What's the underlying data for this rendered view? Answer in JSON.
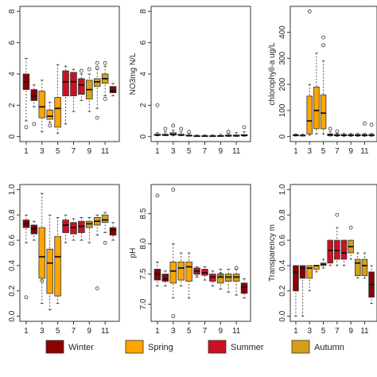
{
  "legend": {
    "items": [
      {
        "label": "Winter",
        "color": "#8B0000"
      },
      {
        "label": "Spring",
        "color": "#FFA500"
      },
      {
        "label": "Summer",
        "color": "#CC1122"
      },
      {
        "label": "Autumn",
        "color": "#D4A017"
      }
    ]
  },
  "chart_data": [
    {
      "type": "box",
      "panel": "top-left",
      "ylabel": "",
      "ylim": [
        0,
        8
      ],
      "yticks": [
        0,
        2,
        4,
        6,
        8
      ],
      "xticks": [
        1,
        3,
        5,
        7,
        9,
        11
      ],
      "grid": false,
      "boxes": [
        {
          "month": 1,
          "min": 1.0,
          "q1": 3.0,
          "median": 3.5,
          "q3": 4.0,
          "max": 5.0,
          "outliers": [
            0.6
          ],
          "season": "Winter"
        },
        {
          "month": 2,
          "min": 1.9,
          "q1": 2.3,
          "median": 2.6,
          "q3": 3.0,
          "max": 3.3,
          "outliers": [
            0.8
          ],
          "season": "Winter"
        },
        {
          "month": 3,
          "min": 0.3,
          "q1": 1.2,
          "median": 1.9,
          "q3": 2.9,
          "max": 3.6,
          "outliers": [],
          "season": "Spring"
        },
        {
          "month": 4,
          "min": 0.9,
          "q1": 1.1,
          "median": 1.3,
          "q3": 1.7,
          "max": 2.2,
          "outliers": [
            0.7
          ],
          "season": "Spring"
        },
        {
          "month": 5,
          "min": 0.2,
          "q1": 0.6,
          "median": 1.8,
          "q3": 2.5,
          "max": 4.6,
          "outliers": [],
          "season": "Spring"
        },
        {
          "month": 6,
          "min": 0.8,
          "q1": 2.6,
          "median": 3.5,
          "q3": 4.2,
          "max": 4.5,
          "outliers": [],
          "season": "Summer"
        },
        {
          "month": 7,
          "min": 1.6,
          "q1": 2.6,
          "median": 3.5,
          "q3": 4.1,
          "max": 4.3,
          "outliers": [],
          "season": "Summer"
        },
        {
          "month": 8,
          "min": 2.3,
          "q1": 2.7,
          "median": 3.3,
          "q3": 3.7,
          "max": 4.0,
          "outliers": [
            4.2
          ],
          "season": "Summer"
        },
        {
          "month": 9,
          "min": 1.6,
          "q1": 2.4,
          "median": 3.0,
          "q3": 3.6,
          "max": 4.0,
          "outliers": [
            4.3
          ],
          "season": "Autumn"
        },
        {
          "month": 10,
          "min": 1.8,
          "q1": 3.2,
          "median": 3.5,
          "q3": 3.7,
          "max": 4.3,
          "outliers": [
            4.7,
            4.4,
            1.2
          ],
          "season": "Autumn"
        },
        {
          "month": 11,
          "min": 2.6,
          "q1": 3.4,
          "median": 3.7,
          "q3": 4.0,
          "max": 4.5,
          "outliers": [
            4.7,
            2.4
          ],
          "season": "Autumn"
        },
        {
          "month": 12,
          "min": 2.6,
          "q1": 2.8,
          "median": 2.9,
          "q3": 3.2,
          "max": 3.4,
          "outliers": [],
          "season": "Winter"
        }
      ]
    },
    {
      "type": "box",
      "panel": "top-center",
      "ylabel": "NO3mg N/L",
      "ylim": [
        0,
        8
      ],
      "yticks": [
        0,
        2,
        4,
        6,
        8
      ],
      "xticks": [
        1,
        3,
        5,
        7,
        9,
        11
      ],
      "grid": false,
      "boxes": [
        {
          "month": 1,
          "min": 0.05,
          "q1": 0.08,
          "median": 0.1,
          "q3": 0.15,
          "max": 0.25,
          "outliers": [
            2.0
          ],
          "season": "Winter"
        },
        {
          "month": 2,
          "min": 0.05,
          "q1": 0.08,
          "median": 0.1,
          "q3": 0.15,
          "max": 0.3,
          "outliers": [
            0.5
          ],
          "season": "Winter"
        },
        {
          "month": 3,
          "min": 0.05,
          "q1": 0.1,
          "median": 0.15,
          "q3": 0.25,
          "max": 0.4,
          "outliers": [
            0.7
          ],
          "season": "Spring"
        },
        {
          "month": 4,
          "min": 0.05,
          "q1": 0.08,
          "median": 0.1,
          "q3": 0.15,
          "max": 0.3,
          "outliers": [
            0.5
          ],
          "season": "Spring"
        },
        {
          "month": 5,
          "min": 0.02,
          "q1": 0.04,
          "median": 0.06,
          "q3": 0.1,
          "max": 0.2,
          "outliers": [
            0.3
          ],
          "season": "Spring"
        },
        {
          "month": 6,
          "min": 0.01,
          "q1": 0.02,
          "median": 0.03,
          "q3": 0.05,
          "max": 0.1,
          "outliers": [],
          "season": "Summer"
        },
        {
          "month": 7,
          "min": 0.01,
          "q1": 0.02,
          "median": 0.03,
          "q3": 0.05,
          "max": 0.1,
          "outliers": [],
          "season": "Summer"
        },
        {
          "month": 8,
          "min": 0.01,
          "q1": 0.02,
          "median": 0.03,
          "q3": 0.05,
          "max": 0.1,
          "outliers": [],
          "season": "Summer"
        },
        {
          "month": 9,
          "min": 0.01,
          "q1": 0.02,
          "median": 0.04,
          "q3": 0.06,
          "max": 0.15,
          "outliers": [],
          "season": "Autumn"
        },
        {
          "month": 10,
          "min": 0.01,
          "q1": 0.03,
          "median": 0.05,
          "q3": 0.1,
          "max": 0.2,
          "outliers": [
            0.3
          ],
          "season": "Autumn"
        },
        {
          "month": 11,
          "min": 0.01,
          "q1": 0.03,
          "median": 0.05,
          "q3": 0.1,
          "max": 0.25,
          "outliers": [],
          "season": "Autumn"
        },
        {
          "month": 12,
          "min": 0.02,
          "q1": 0.05,
          "median": 0.08,
          "q3": 0.12,
          "max": 0.3,
          "outliers": [
            0.6
          ],
          "season": "Winter"
        }
      ]
    },
    {
      "type": "box",
      "panel": "top-right",
      "ylabel": "chlorophyll-a ug/L",
      "ylim": [
        0,
        480
      ],
      "yticks": [
        0,
        100,
        200,
        300,
        400
      ],
      "xticks": [
        1,
        3,
        5,
        7,
        9,
        11
      ],
      "grid": false,
      "boxes": [
        {
          "month": 1,
          "min": 2,
          "q1": 3,
          "median": 5,
          "q3": 7,
          "max": 10,
          "outliers": [],
          "season": "Winter"
        },
        {
          "month": 2,
          "min": 2,
          "q1": 3,
          "median": 4,
          "q3": 6,
          "max": 9,
          "outliers": [],
          "season": "Winter"
        },
        {
          "month": 3,
          "min": 5,
          "q1": 10,
          "median": 60,
          "q3": 155,
          "max": 200,
          "outliers": [
            480
          ],
          "season": "Spring"
        },
        {
          "month": 4,
          "min": 10,
          "q1": 30,
          "median": 100,
          "q3": 190,
          "max": 320,
          "outliers": [],
          "season": "Spring"
        },
        {
          "month": 5,
          "min": 10,
          "q1": 30,
          "median": 90,
          "q3": 160,
          "max": 290,
          "outliers": [
            380,
            350
          ],
          "season": "Spring"
        },
        {
          "month": 6,
          "min": 2,
          "q1": 4,
          "median": 6,
          "q3": 10,
          "max": 18,
          "outliers": [
            30
          ],
          "season": "Summer"
        },
        {
          "month": 7,
          "min": 1,
          "q1": 3,
          "median": 5,
          "q3": 8,
          "max": 12,
          "outliers": [
            20
          ],
          "season": "Summer"
        },
        {
          "month": 8,
          "min": 1,
          "q1": 3,
          "median": 5,
          "q3": 8,
          "max": 12,
          "outliers": [],
          "season": "Summer"
        },
        {
          "month": 9,
          "min": 1,
          "q1": 3,
          "median": 5,
          "q3": 8,
          "max": 12,
          "outliers": [],
          "season": "Autumn"
        },
        {
          "month": 10,
          "min": 1,
          "q1": 3,
          "median": 5,
          "q3": 8,
          "max": 12,
          "outliers": [],
          "season": "Autumn"
        },
        {
          "month": 11,
          "min": 1,
          "q1": 3,
          "median": 5,
          "q3": 8,
          "max": 12,
          "outliers": [
            50
          ],
          "season": "Autumn"
        },
        {
          "month": 12,
          "min": 1,
          "q1": 3,
          "median": 5,
          "q3": 8,
          "max": 12,
          "outliers": [
            45
          ],
          "season": "Winter"
        }
      ]
    },
    {
      "type": "box",
      "panel": "bottom-left",
      "ylabel": "",
      "ylim": [
        0,
        1.0
      ],
      "yticks": [
        0.0,
        0.2,
        0.4,
        0.6,
        0.8,
        1.0
      ],
      "xticks": [
        1,
        3,
        5,
        7,
        9,
        11
      ],
      "grid": false,
      "boxes": [
        {
          "month": 1,
          "min": 0.58,
          "q1": 0.7,
          "median": 0.73,
          "q3": 0.76,
          "max": 0.8,
          "outliers": [
            0.15
          ],
          "season": "Winter"
        },
        {
          "month": 2,
          "min": 0.6,
          "q1": 0.65,
          "median": 0.69,
          "q3": 0.72,
          "max": 0.75,
          "outliers": [],
          "season": "Winter"
        },
        {
          "month": 3,
          "min": 0.1,
          "q1": 0.3,
          "median": 0.47,
          "q3": 0.7,
          "max": 0.97,
          "outliers": [
            0.28
          ],
          "season": "Spring"
        },
        {
          "month": 4,
          "min": 0.05,
          "q1": 0.18,
          "median": 0.42,
          "q3": 0.53,
          "max": 0.8,
          "outliers": [],
          "season": "Spring"
        },
        {
          "month": 5,
          "min": 0.1,
          "q1": 0.16,
          "median": 0.47,
          "q3": 0.63,
          "max": 0.78,
          "outliers": [],
          "season": "Spring"
        },
        {
          "month": 6,
          "min": 0.58,
          "q1": 0.66,
          "median": 0.72,
          "q3": 0.76,
          "max": 0.8,
          "outliers": [],
          "season": "Summer"
        },
        {
          "month": 7,
          "min": 0.6,
          "q1": 0.65,
          "median": 0.7,
          "q3": 0.74,
          "max": 0.77,
          "outliers": [],
          "season": "Summer"
        },
        {
          "month": 8,
          "min": 0.6,
          "q1": 0.66,
          "median": 0.71,
          "q3": 0.75,
          "max": 0.78,
          "outliers": [],
          "season": "Summer"
        },
        {
          "month": 9,
          "min": 0.58,
          "q1": 0.7,
          "median": 0.73,
          "q3": 0.75,
          "max": 0.78,
          "outliers": [],
          "season": "Autumn"
        },
        {
          "month": 10,
          "min": 0.64,
          "q1": 0.72,
          "median": 0.75,
          "q3": 0.78,
          "max": 0.8,
          "outliers": [
            0.22
          ],
          "season": "Autumn"
        },
        {
          "month": 11,
          "min": 0.66,
          "q1": 0.74,
          "median": 0.76,
          "q3": 0.8,
          "max": 0.82,
          "outliers": [
            0.58
          ],
          "season": "Autumn"
        },
        {
          "month": 12,
          "min": 0.6,
          "q1": 0.64,
          "median": 0.68,
          "q3": 0.7,
          "max": 0.74,
          "outliers": [],
          "season": "Winter"
        }
      ]
    },
    {
      "type": "box",
      "panel": "bottom-center",
      "ylabel": "pH",
      "ylim": [
        6.8,
        8.9
      ],
      "yticks": [
        7.0,
        7.5,
        8.0,
        8.5
      ],
      "xticks": [
        1,
        3,
        5,
        7,
        9,
        11
      ],
      "grid": false,
      "boxes": [
        {
          "month": 1,
          "min": 7.3,
          "q1": 7.4,
          "median": 7.5,
          "q3": 7.58,
          "max": 7.7,
          "outliers": [
            8.8
          ],
          "season": "Winter"
        },
        {
          "month": 2,
          "min": 7.3,
          "q1": 7.38,
          "median": 7.42,
          "q3": 7.5,
          "max": 7.55,
          "outliers": [],
          "season": "Winter"
        },
        {
          "month": 3,
          "min": 7.1,
          "q1": 7.35,
          "median": 7.55,
          "q3": 7.7,
          "max": 8.0,
          "outliers": [
            8.9,
            6.8
          ],
          "season": "Spring"
        },
        {
          "month": 4,
          "min": 7.3,
          "q1": 7.4,
          "median": 7.6,
          "q3": 7.7,
          "max": 7.85,
          "outliers": [],
          "season": "Spring"
        },
        {
          "month": 5,
          "min": 7.1,
          "q1": 7.38,
          "median": 7.62,
          "q3": 7.7,
          "max": 7.85,
          "outliers": [],
          "season": "Spring"
        },
        {
          "month": 6,
          "min": 7.45,
          "q1": 7.5,
          "median": 7.55,
          "q3": 7.6,
          "max": 7.62,
          "outliers": [
            7.5
          ],
          "season": "Summer"
        },
        {
          "month": 7,
          "min": 7.4,
          "q1": 7.48,
          "median": 7.52,
          "q3": 7.58,
          "max": 7.62,
          "outliers": [],
          "season": "Summer"
        },
        {
          "month": 8,
          "min": 7.3,
          "q1": 7.38,
          "median": 7.45,
          "q3": 7.5,
          "max": 7.55,
          "outliers": [],
          "season": "Summer"
        },
        {
          "month": 9,
          "min": 7.25,
          "q1": 7.35,
          "median": 7.45,
          "q3": 7.5,
          "max": 7.58,
          "outliers": [
            7.5
          ],
          "season": "Autumn"
        },
        {
          "month": 10,
          "min": 7.2,
          "q1": 7.38,
          "median": 7.45,
          "q3": 7.5,
          "max": 7.58,
          "outliers": [],
          "season": "Autumn"
        },
        {
          "month": 11,
          "min": 7.15,
          "q1": 7.38,
          "median": 7.45,
          "q3": 7.5,
          "max": 7.58,
          "outliers": [
            7.6
          ],
          "season": "Autumn"
        },
        {
          "month": 12,
          "min": 7.1,
          "q1": 7.18,
          "median": 7.28,
          "q3": 7.35,
          "max": 7.42,
          "outliers": [],
          "season": "Winter"
        }
      ]
    },
    {
      "type": "box",
      "panel": "bottom-right",
      "ylabel": "Transparency m",
      "ylim": [
        0,
        1.0
      ],
      "yticks": [
        0.0,
        0.2,
        0.4,
        0.6,
        0.8,
        1.0
      ],
      "xticks": [
        1,
        3,
        5,
        7,
        9,
        11
      ],
      "grid": false,
      "boxes": [
        {
          "month": 1,
          "min": 0.0,
          "q1": 0.2,
          "median": 0.35,
          "q3": 0.4,
          "max": 0.4,
          "outliers": [],
          "season": "Winter"
        },
        {
          "month": 2,
          "min": 0.0,
          "q1": 0.3,
          "median": 0.38,
          "q3": 0.4,
          "max": 0.4,
          "outliers": [],
          "season": "Winter"
        },
        {
          "month": 3,
          "min": 0.2,
          "q1": 0.3,
          "median": 0.38,
          "q3": 0.4,
          "max": 0.4,
          "outliers": [],
          "season": "Spring"
        },
        {
          "month": 4,
          "min": 0.35,
          "q1": 0.37,
          "median": 0.4,
          "q3": 0.4,
          "max": 0.4,
          "outliers": [],
          "season": "Spring"
        },
        {
          "month": 5,
          "min": 0.38,
          "q1": 0.4,
          "median": 0.41,
          "q3": 0.42,
          "max": 0.45,
          "outliers": [],
          "season": "Spring"
        },
        {
          "month": 6,
          "min": 0.4,
          "q1": 0.42,
          "median": 0.52,
          "q3": 0.6,
          "max": 0.6,
          "outliers": [],
          "season": "Summer"
        },
        {
          "month": 7,
          "min": 0.4,
          "q1": 0.45,
          "median": 0.52,
          "q3": 0.6,
          "max": 0.7,
          "outliers": [
            0.8
          ],
          "season": "Summer"
        },
        {
          "month": 8,
          "min": 0.4,
          "q1": 0.45,
          "median": 0.5,
          "q3": 0.6,
          "max": 0.6,
          "outliers": [],
          "season": "Summer"
        },
        {
          "month": 9,
          "min": 0.45,
          "q1": 0.5,
          "median": 0.55,
          "q3": 0.6,
          "max": 0.6,
          "outliers": [
            0.7
          ],
          "season": "Autumn"
        },
        {
          "month": 10,
          "min": 0.3,
          "q1": 0.32,
          "median": 0.42,
          "q3": 0.45,
          "max": 0.5,
          "outliers": [],
          "season": "Autumn"
        },
        {
          "month": 11,
          "min": 0.3,
          "q1": 0.32,
          "median": 0.4,
          "q3": 0.45,
          "max": 0.5,
          "outliers": [],
          "season": "Autumn"
        },
        {
          "month": 12,
          "min": 0.1,
          "q1": 0.15,
          "median": 0.25,
          "q3": 0.35,
          "max": 0.4,
          "outliers": [],
          "season": "Winter"
        }
      ]
    }
  ]
}
